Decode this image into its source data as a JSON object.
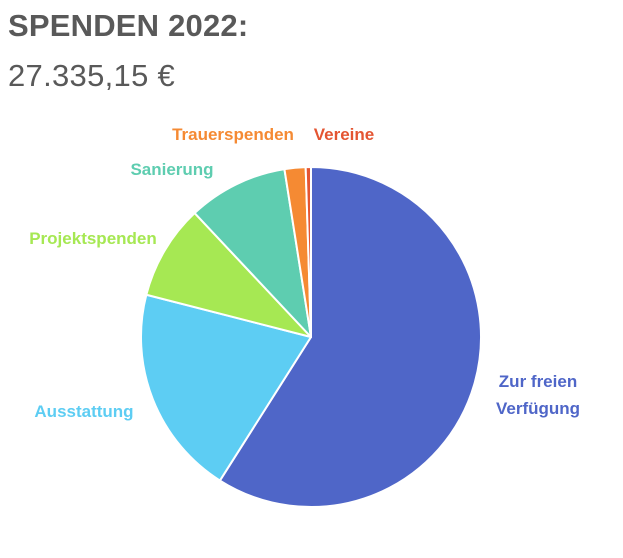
{
  "header": {
    "title": "SPENDEN 2022:",
    "total": "27.335,15 €"
  },
  "chart_data": {
    "type": "pie",
    "title": "SPENDEN 2022:",
    "subtitle": "27.335,15 €",
    "legend": "none",
    "slices": [
      {
        "label": "Zur freien Verfügung",
        "value": 59.0,
        "color": "#4F66C8"
      },
      {
        "label": "Ausstattung",
        "value": 20.0,
        "color": "#5DCDF3"
      },
      {
        "label": "Projektspenden",
        "value": 9.0,
        "color": "#A6E853"
      },
      {
        "label": "Sanierung",
        "value": 9.5,
        "color": "#5ECDB0"
      },
      {
        "label": "Trauerspenden",
        "value": 2.0,
        "color": "#F58A33"
      },
      {
        "label": "Vereine",
        "value": 0.5,
        "color": "#E45532"
      }
    ]
  }
}
